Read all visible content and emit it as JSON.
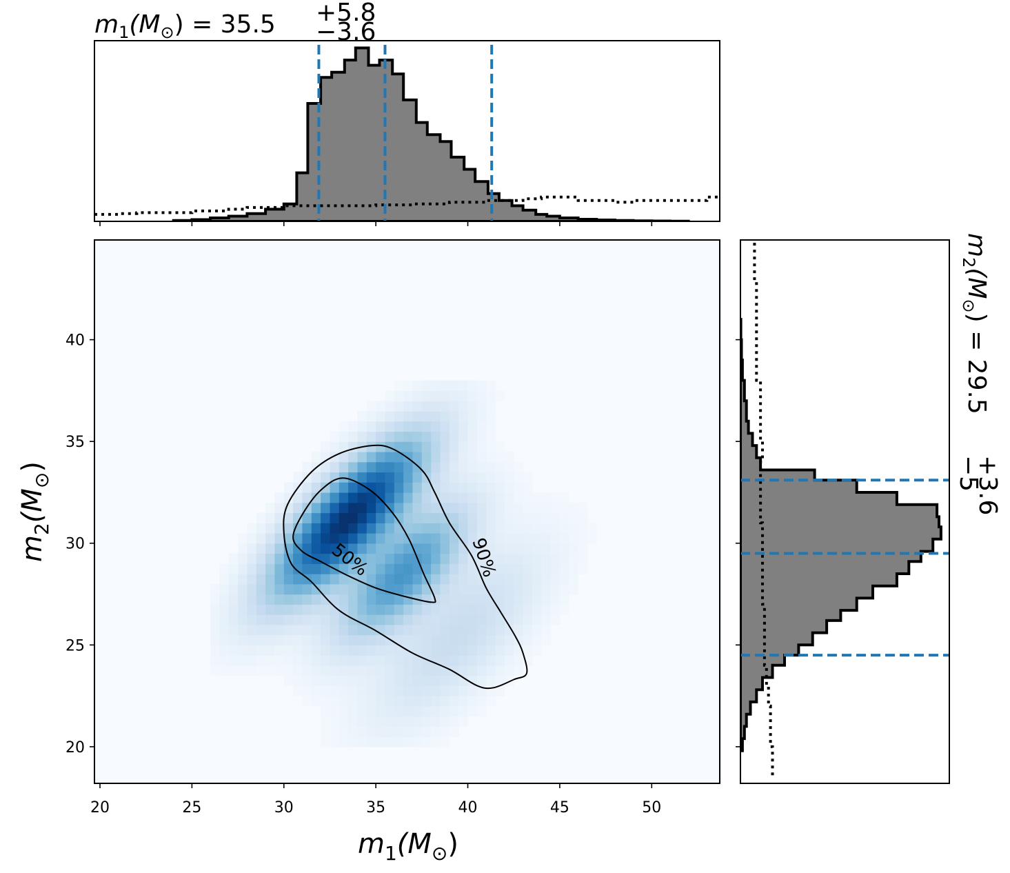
{
  "figure": {
    "top_title": {
      "var": "m",
      "sub": "1",
      "unit_open": "(M",
      "unit_sym": "⊙",
      "unit_close": ")",
      "eq": " = 35.5",
      "plus": "+5.8",
      "minus": "−3.6"
    },
    "right_title": {
      "var": "m",
      "sub": "2",
      "unit_open": "(M",
      "unit_sym": "⊙",
      "unit_close": ")",
      "eq": " = 29.5",
      "plus": "+3.6",
      "minus": "−5"
    },
    "xlabel": {
      "var": "m",
      "sub": "1",
      "unit_open": "(M",
      "unit_sym": "⊙",
      "unit_close": ")"
    },
    "ylabel": {
      "var": "m",
      "sub": "2",
      "unit_open": "(M",
      "unit_sym": "⊙",
      "unit_close": ")"
    }
  },
  "chart_data": [
    {
      "type": "heatmap",
      "xlabel": "m1(M⊙)",
      "ylabel": "m2(M⊙)",
      "xlim": [
        19.7,
        53.7
      ],
      "ylim": [
        18.2,
        44.9
      ],
      "xticks": [
        20,
        25,
        30,
        35,
        40,
        45,
        50
      ],
      "yticks": [
        20,
        25,
        30,
        35,
        40
      ],
      "colormap": "Blues",
      "density_peak": {
        "m1": 33.5,
        "m2": 31.2
      },
      "contours": [
        {
          "label": "50%",
          "points": [
            [
              33.2,
              33.2
            ],
            [
              32.0,
              32.6
            ],
            [
              31.0,
              31.4
            ],
            [
              30.5,
              30.3
            ],
            [
              31.0,
              29.6
            ],
            [
              32.0,
              29.1
            ],
            [
              33.5,
              28.4
            ],
            [
              35.0,
              27.8
            ],
            [
              36.5,
              27.4
            ],
            [
              38.0,
              27.1
            ],
            [
              38.2,
              27.3
            ],
            [
              37.6,
              28.5
            ],
            [
              36.8,
              30.2
            ],
            [
              35.9,
              31.5
            ],
            [
              34.7,
              32.6
            ]
          ]
        },
        {
          "label": "90%",
          "points": [
            [
              34.8,
              34.8
            ],
            [
              33.0,
              34.4
            ],
            [
              31.5,
              33.5
            ],
            [
              30.2,
              31.9
            ],
            [
              30.0,
              30.5
            ],
            [
              30.4,
              29.0
            ],
            [
              31.5,
              28.1
            ],
            [
              33.0,
              26.7
            ],
            [
              35.0,
              25.7
            ],
            [
              37.0,
              24.6
            ],
            [
              39.0,
              23.8
            ],
            [
              40.5,
              23.0
            ],
            [
              41.4,
              22.9
            ],
            [
              42.5,
              23.3
            ],
            [
              43.2,
              23.6
            ],
            [
              43.0,
              24.6
            ],
            [
              42.6,
              25.4
            ],
            [
              41.8,
              26.6
            ],
            [
              41.0,
              27.8
            ],
            [
              40.2,
              29.4
            ],
            [
              39.0,
              31.0
            ],
            [
              38.2,
              32.5
            ],
            [
              37.5,
              33.6
            ],
            [
              36.0,
              34.6
            ]
          ]
        }
      ]
    },
    {
      "type": "bar",
      "title": "m1(M⊙) = 35.5 +5.8 −3.6",
      "description_axis": "m1",
      "bin_edges": [
        24.0,
        25.0,
        26.0,
        27.0,
        28.0,
        29.0,
        30.0,
        30.7,
        31.3,
        32.0,
        32.6,
        33.3,
        33.9,
        34.6,
        35.2,
        35.9,
        36.5,
        37.2,
        37.8,
        38.5,
        39.1,
        39.8,
        40.4,
        41.1,
        41.7,
        42.4,
        43.0,
        43.7,
        44.3,
        45.0,
        46.0,
        47.0,
        48.0,
        49.0,
        50.0,
        51.0,
        52.0
      ],
      "counts": [
        0.005,
        0.01,
        0.02,
        0.03,
        0.045,
        0.07,
        0.1,
        0.28,
        0.68,
        0.83,
        0.86,
        0.93,
        1.0,
        0.9,
        0.93,
        0.85,
        0.7,
        0.57,
        0.5,
        0.46,
        0.37,
        0.3,
        0.23,
        0.16,
        0.12,
        0.09,
        0.065,
        0.04,
        0.03,
        0.02,
        0.012,
        0.008,
        0.005,
        0.003,
        0.002,
        0.001
      ],
      "prior_x": [
        19.7,
        21.0,
        22.0,
        23.0,
        25.0,
        27.0,
        28.0,
        29.0,
        30.0,
        31.5,
        33.0,
        35.0,
        37.0,
        39.0,
        41.0,
        42.0,
        43.0,
        44.0,
        45.0,
        46.0,
        47.0,
        48.0,
        49.0,
        50.0,
        51.0,
        52.0,
        53.0,
        53.7
      ],
      "prior_y": [
        0.04,
        0.045,
        0.05,
        0.05,
        0.06,
        0.07,
        0.08,
        0.08,
        0.09,
        0.09,
        0.09,
        0.095,
        0.1,
        0.11,
        0.12,
        0.12,
        0.13,
        0.14,
        0.14,
        0.12,
        0.12,
        0.11,
        0.12,
        0.12,
        0.12,
        0.12,
        0.14,
        0.14
      ],
      "quantiles": [
        31.9,
        35.5,
        41.3
      ],
      "xticks": [
        20,
        25,
        30,
        35,
        40,
        45,
        50
      ]
    },
    {
      "type": "bar",
      "orientation": "horizontal",
      "title": "m2(M⊙) = 29.5 +3.6 −5",
      "description_axis": "m2",
      "bin_edges": [
        19.8,
        20.4,
        21.0,
        21.6,
        22.2,
        22.8,
        23.4,
        24.0,
        24.5,
        25.0,
        25.6,
        26.2,
        26.7,
        27.3,
        27.9,
        28.5,
        29.1,
        29.6,
        30.2,
        30.8,
        31.3,
        31.9,
        32.5,
        33.1,
        33.6,
        34.2,
        34.8,
        35.4,
        36.0,
        37.0,
        38.0,
        39.0,
        40.0,
        41.0
      ],
      "counts": [
        0.01,
        0.02,
        0.03,
        0.05,
        0.08,
        0.11,
        0.16,
        0.22,
        0.29,
        0.36,
        0.43,
        0.5,
        0.58,
        0.66,
        0.78,
        0.84,
        0.9,
        0.96,
        1.0,
        0.99,
        0.98,
        0.78,
        0.58,
        0.37,
        0.1,
        0.08,
        0.06,
        0.04,
        0.03,
        0.02,
        0.01,
        0.005,
        0.002
      ],
      "prior_y": [
        18.6,
        19.5,
        20.0,
        21.0,
        22.0,
        23.0,
        24.0,
        25.0,
        26.0,
        27.0,
        28.0,
        29.0,
        30.0,
        31.0,
        32.0,
        33.0,
        33.6,
        34.0,
        35.0,
        36.0,
        37.0,
        37.5,
        38.0,
        39.0,
        40.0,
        41.0,
        42.0,
        43.0,
        44.0,
        44.9
      ],
      "prior_x": [
        0.16,
        0.16,
        0.15,
        0.15,
        0.14,
        0.13,
        0.12,
        0.12,
        0.12,
        0.11,
        0.11,
        0.11,
        0.11,
        0.1,
        0.1,
        0.1,
        0.1,
        0.11,
        0.1,
        0.1,
        0.1,
        0.1,
        0.08,
        0.08,
        0.08,
        0.08,
        0.08,
        0.07,
        0.07,
        0.07
      ],
      "quantiles": [
        24.5,
        29.5,
        33.1
      ],
      "yticks": [
        20,
        25,
        30,
        35,
        40
      ]
    }
  ]
}
